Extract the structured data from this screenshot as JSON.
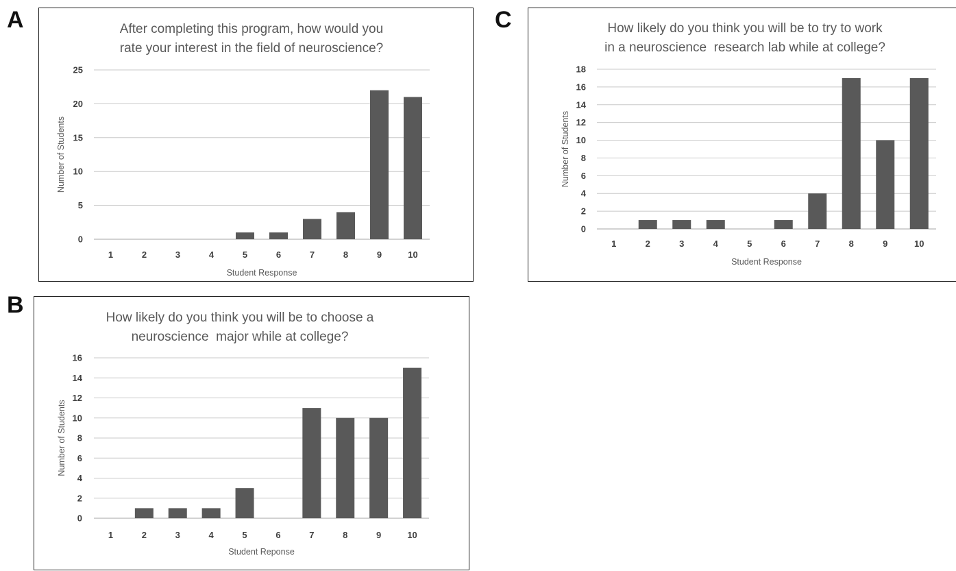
{
  "panel_labels": [
    "A",
    "B",
    "C"
  ],
  "chart_data": [
    {
      "panel": "A",
      "type": "bar",
      "title_lines": [
        "After completing this program, how would you",
        "rate your interest in the field of neuroscience?"
      ],
      "xlabel": "Student Response",
      "ylabel": "Number of Students",
      "categories": [
        "1",
        "2",
        "3",
        "4",
        "5",
        "6",
        "7",
        "8",
        "9",
        "10"
      ],
      "values": [
        0,
        0,
        0,
        0,
        1,
        1,
        3,
        4,
        22,
        21
      ],
      "ylim": [
        0,
        25
      ],
      "yticks": [
        0,
        5,
        10,
        15,
        20,
        25
      ],
      "grid": true,
      "bar_color": "#595959"
    },
    {
      "panel": "B",
      "type": "bar",
      "title_lines": [
        "How likely do you think you will be to choose a",
        "neuroscience  major while at college?"
      ],
      "xlabel": "Student Reponse",
      "ylabel": "Number of Students",
      "categories": [
        "1",
        "2",
        "3",
        "4",
        "5",
        "6",
        "7",
        "8",
        "9",
        "10"
      ],
      "values": [
        0,
        1,
        1,
        1,
        3,
        0,
        11,
        10,
        10,
        15
      ],
      "ylim": [
        0,
        16
      ],
      "yticks": [
        0,
        2,
        4,
        6,
        8,
        10,
        12,
        14,
        16
      ],
      "grid": true,
      "bar_color": "#595959"
    },
    {
      "panel": "C",
      "type": "bar",
      "title_lines": [
        "How likely do you think you will be to try to work",
        "in a neuroscience  research lab while at college?"
      ],
      "xlabel": "Student Response",
      "ylabel": "Number of Students",
      "categories": [
        "1",
        "2",
        "3",
        "4",
        "5",
        "6",
        "7",
        "8",
        "9",
        "10"
      ],
      "values": [
        0,
        1,
        1,
        1,
        0,
        1,
        4,
        17,
        10,
        17
      ],
      "ylim": [
        0,
        18
      ],
      "yticks": [
        0,
        2,
        4,
        6,
        8,
        10,
        12,
        14,
        16,
        18
      ],
      "grid": true,
      "bar_color": "#595959"
    }
  ]
}
